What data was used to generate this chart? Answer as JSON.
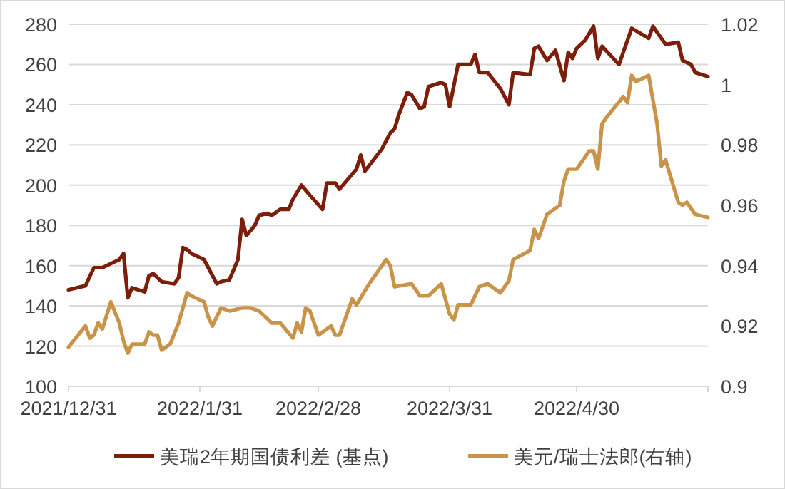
{
  "chart_data": {
    "type": "line",
    "xlim": [
      "2021-12-31",
      "2022-05-31"
    ],
    "xticks": [
      {
        "value": "2021-12-31",
        "label": "2021/12/31"
      },
      {
        "value": "2022-01-31",
        "label": "2022/1/31"
      },
      {
        "value": "2022-02-28",
        "label": "2022/2/28"
      },
      {
        "value": "2022-03-31",
        "label": "2022/3/31"
      },
      {
        "value": "2022-04-30",
        "label": "2022/4/30"
      }
    ],
    "ylim": [
      100,
      280
    ],
    "yticks": [
      100,
      120,
      140,
      160,
      180,
      200,
      220,
      240,
      260,
      280
    ],
    "y2lim": [
      0.9,
      1.02
    ],
    "y2ticks": [
      0.9,
      0.92,
      0.94,
      0.96,
      0.98,
      1,
      1.02
    ],
    "grid": "y",
    "legend": "bottom",
    "marker": "none",
    "line_style": "solid",
    "series": [
      {
        "name": "美瑞2年期国债利差 (基点)",
        "color": "#7b1e0a",
        "x": [
          "2021-12-31",
          "2022-01-04",
          "2022-01-06",
          "2022-01-08",
          "2022-01-11",
          "2022-01-12",
          "2022-01-13",
          "2022-01-14",
          "2022-01-15",
          "2022-01-18",
          "2022-01-19",
          "2022-01-20",
          "2022-01-22",
          "2022-01-25",
          "2022-01-26",
          "2022-01-27",
          "2022-01-28",
          "2022-01-29",
          "2022-02-01",
          "2022-02-02",
          "2022-02-04",
          "2022-02-05",
          "2022-02-07",
          "2022-02-09",
          "2022-02-10",
          "2022-02-11",
          "2022-02-13",
          "2022-02-14",
          "2022-02-16",
          "2022-02-17",
          "2022-02-19",
          "2022-02-21",
          "2022-02-22",
          "2022-02-24",
          "2022-02-26",
          "2022-03-01",
          "2022-03-02",
          "2022-03-04",
          "2022-03-05",
          "2022-03-09",
          "2022-03-10",
          "2022-03-11",
          "2022-03-15",
          "2022-03-17",
          "2022-03-18",
          "2022-03-19",
          "2022-03-21",
          "2022-03-22",
          "2022-03-24",
          "2022-03-25",
          "2022-03-26",
          "2022-03-29",
          "2022-03-30",
          "2022-03-31",
          "2022-04-02",
          "2022-04-05",
          "2022-04-06",
          "2022-04-07",
          "2022-04-09",
          "2022-04-12",
          "2022-04-14",
          "2022-04-15",
          "2022-04-19",
          "2022-04-20",
          "2022-04-21",
          "2022-04-23",
          "2022-04-25",
          "2022-04-27",
          "2022-04-28",
          "2022-04-29",
          "2022-04-30",
          "2022-05-02",
          "2022-05-04",
          "2022-05-05",
          "2022-05-06",
          "2022-05-10",
          "2022-05-13",
          "2022-05-17",
          "2022-05-18",
          "2022-05-19",
          "2022-05-21",
          "2022-05-24",
          "2022-05-25",
          "2022-05-27",
          "2022-05-28",
          "2022-05-31"
        ],
        "values": [
          148,
          150,
          159,
          159,
          162,
          163,
          166,
          144,
          149,
          147,
          155,
          156,
          152,
          151,
          154,
          169,
          168,
          166,
          163,
          159,
          151,
          152,
          153,
          163,
          183,
          175,
          180,
          185,
          186,
          185,
          188,
          188,
          193,
          200,
          195,
          188,
          201,
          201,
          198,
          208,
          215,
          207,
          218,
          226,
          228,
          235,
          246,
          245,
          238,
          239,
          249,
          251,
          250,
          239,
          260,
          260,
          265,
          256,
          256,
          248,
          240,
          256,
          255,
          268,
          269,
          262,
          267,
          252,
          266,
          263,
          268,
          272,
          279,
          263,
          269,
          260,
          278,
          273,
          279,
          276,
          270,
          271,
          262,
          260,
          256,
          254
        ]
      },
      {
        "name": "美元/瑞士法郎(右轴)",
        "color": "#c9944a",
        "axis": "y2",
        "x": [
          "2021-12-31",
          "2022-01-04",
          "2022-01-05",
          "2022-01-06",
          "2022-01-07",
          "2022-01-08",
          "2022-01-10",
          "2022-01-12",
          "2022-01-13",
          "2022-01-14",
          "2022-01-15",
          "2022-01-18",
          "2022-01-19",
          "2022-01-20",
          "2022-01-21",
          "2022-01-22",
          "2022-01-24",
          "2022-01-26",
          "2022-01-28",
          "2022-01-29",
          "2022-02-01",
          "2022-02-02",
          "2022-02-03",
          "2022-02-05",
          "2022-02-07",
          "2022-02-10",
          "2022-02-12",
          "2022-02-14",
          "2022-02-17",
          "2022-02-19",
          "2022-02-22",
          "2022-02-23",
          "2022-02-24",
          "2022-02-25",
          "2022-02-26",
          "2022-02-28",
          "2022-03-03",
          "2022-03-04",
          "2022-03-05",
          "2022-03-08",
          "2022-03-09",
          "2022-03-12",
          "2022-03-14",
          "2022-03-16",
          "2022-03-17",
          "2022-03-18",
          "2022-03-22",
          "2022-03-24",
          "2022-03-26",
          "2022-03-29",
          "2022-03-31",
          "2022-04-01",
          "2022-04-02",
          "2022-04-05",
          "2022-04-07",
          "2022-04-09",
          "2022-04-12",
          "2022-04-14",
          "2022-04-15",
          "2022-04-19",
          "2022-04-20",
          "2022-04-21",
          "2022-04-23",
          "2022-04-26",
          "2022-04-27",
          "2022-04-28",
          "2022-04-30",
          "2022-05-03",
          "2022-05-04",
          "2022-05-05",
          "2022-05-06",
          "2022-05-07",
          "2022-05-11",
          "2022-05-12",
          "2022-05-13",
          "2022-05-14",
          "2022-05-17",
          "2022-05-19",
          "2022-05-20",
          "2022-05-21",
          "2022-05-24",
          "2022-05-25",
          "2022-05-26",
          "2022-05-28",
          "2022-05-31"
        ],
        "values": [
          0.913,
          0.92,
          0.916,
          0.917,
          0.921,
          0.919,
          0.928,
          0.921,
          0.915,
          0.911,
          0.914,
          0.914,
          0.918,
          0.917,
          0.917,
          0.912,
          0.914,
          0.921,
          0.931,
          0.93,
          0.928,
          0.923,
          0.92,
          0.926,
          0.925,
          0.926,
          0.926,
          0.925,
          0.921,
          0.921,
          0.916,
          0.921,
          0.918,
          0.926,
          0.925,
          0.917,
          0.92,
          0.917,
          0.917,
          0.929,
          0.927,
          0.934,
          0.938,
          0.942,
          0.94,
          0.933,
          0.934,
          0.93,
          0.93,
          0.934,
          0.924,
          0.922,
          0.927,
          0.927,
          0.933,
          0.934,
          0.931,
          0.935,
          0.942,
          0.945,
          0.952,
          0.949,
          0.957,
          0.96,
          0.968,
          0.972,
          0.972,
          0.978,
          0.978,
          0.972,
          0.987,
          0.989,
          0.996,
          0.994,
          1.003,
          1.001,
          1.003,
          0.987,
          0.973,
          0.975,
          0.961,
          0.96,
          0.961,
          0.957,
          0.956
        ]
      }
    ]
  }
}
